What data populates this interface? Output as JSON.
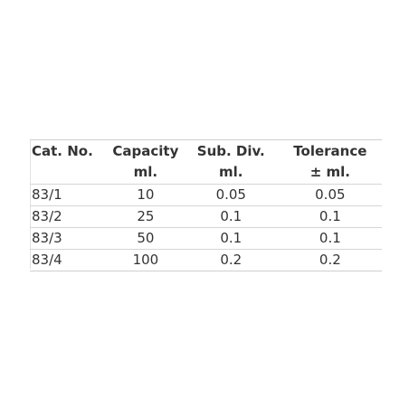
{
  "table": {
    "headers": [
      {
        "line1": "Cat. No.",
        "line2": ""
      },
      {
        "line1": "Capacity",
        "line2": "ml."
      },
      {
        "line1": "Sub. Div.",
        "line2": "ml."
      },
      {
        "line1": "Tolerance",
        "line2": "± ml."
      }
    ],
    "rows": [
      [
        "83/1",
        "10",
        "0.05",
        "0.05"
      ],
      [
        "83/2",
        "25",
        "0.1",
        "0.1"
      ],
      [
        "83/3",
        "50",
        "0.1",
        "0.1"
      ],
      [
        "83/4",
        "100",
        "0.2",
        "0.2"
      ]
    ]
  }
}
